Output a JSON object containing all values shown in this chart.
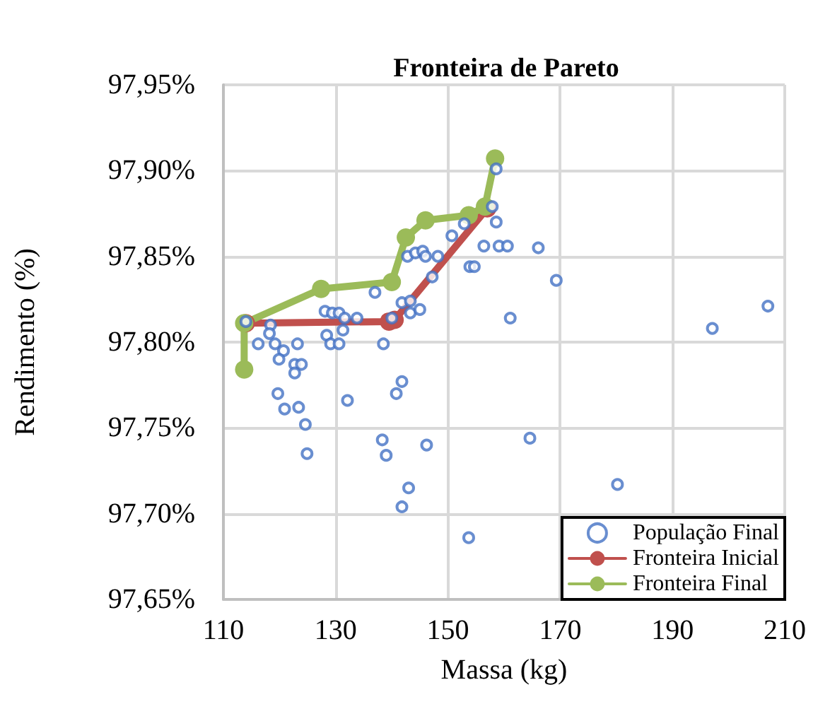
{
  "chart_data": {
    "type": "scatter",
    "title": "Fronteira de Pareto",
    "xlabel": "Massa (kg)",
    "ylabel": "Rendimento (%)",
    "xlim": [
      110,
      210
    ],
    "xticks": [
      110,
      130,
      150,
      170,
      190,
      210
    ],
    "ylim": [
      97.65,
      97.95
    ],
    "yticks": [
      {
        "value": 97.65,
        "label": "97,65%"
      },
      {
        "value": 97.7,
        "label": "97,70%"
      },
      {
        "value": 97.75,
        "label": "97,75%"
      },
      {
        "value": 97.8,
        "label": "97,80%"
      },
      {
        "value": 97.85,
        "label": "97,85%"
      },
      {
        "value": 97.9,
        "label": "97,90%"
      },
      {
        "value": 97.95,
        "label": "97,95%"
      }
    ],
    "grid": true,
    "legend": "bottom right",
    "marker": "circle",
    "series": [
      {
        "name": "População Final",
        "color": "#4472c4",
        "x": [
          114.0,
          118.4,
          118.2,
          116.2,
          119.2,
          120.7,
          119.9,
          123.2,
          122.7,
          123.9,
          122.7,
          119.7,
          120.9,
          123.4,
          124.6,
          124.9,
          128.1,
          129.4,
          130.6,
          131.6,
          133.8,
          128.4,
          129.1,
          130.6,
          131.3,
          132.1,
          137.0,
          138.5,
          138.3,
          139.0,
          140.8,
          141.8,
          140.0,
          141.8,
          143.3,
          145.0,
          143.3,
          146.2,
          142.8,
          144.2,
          145.5,
          146.0,
          148.2,
          147.2,
          150.7,
          152.9,
          153.9,
          154.7,
          156.4,
          157.9,
          158.6,
          158.6,
          159.1,
          160.6,
          166.1,
          169.3,
          161.1,
          197.1,
          207.0,
          164.6,
          180.2,
          143.0,
          141.8,
          153.7
        ],
        "values": [
          97.812,
          97.81,
          97.805,
          97.799,
          97.799,
          97.795,
          97.79,
          97.799,
          97.787,
          97.787,
          97.782,
          97.77,
          97.761,
          97.762,
          97.752,
          97.735,
          97.818,
          97.817,
          97.817,
          97.814,
          97.814,
          97.804,
          97.799,
          97.799,
          97.807,
          97.766,
          97.829,
          97.799,
          97.743,
          97.734,
          97.77,
          97.777,
          97.814,
          97.823,
          97.817,
          97.819,
          97.824,
          97.74,
          97.85,
          97.852,
          97.853,
          97.85,
          97.85,
          97.838,
          97.862,
          97.869,
          97.844,
          97.844,
          97.856,
          97.879,
          97.901,
          97.87,
          97.856,
          97.856,
          97.855,
          97.836,
          97.814,
          97.808,
          97.821,
          97.744,
          97.717,
          97.715,
          97.704,
          97.686
        ]
      },
      {
        "name": "Fronteira Inicial",
        "type": "line",
        "color": "#c0504d",
        "x": [
          114.0,
          139.5,
          140.5,
          157.0
        ],
        "values": [
          97.811,
          97.812,
          97.813,
          97.878
        ]
      },
      {
        "name": "Fronteira Final",
        "type": "line",
        "color": "#9bbb59",
        "x": [
          113.7,
          113.7,
          127.4,
          140.0,
          142.5,
          146.0,
          153.7,
          156.6,
          158.4
        ],
        "values": [
          97.784,
          97.811,
          97.831,
          97.835,
          97.861,
          97.871,
          97.874,
          97.879,
          97.907
        ]
      }
    ]
  }
}
